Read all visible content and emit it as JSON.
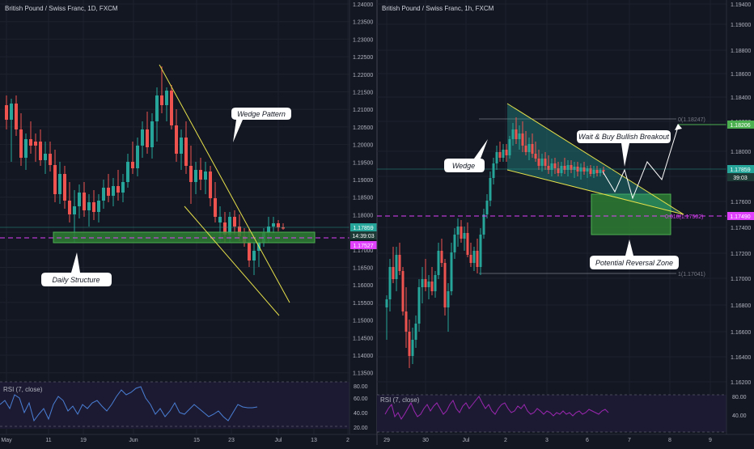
{
  "charts": [
    {
      "id": "left",
      "title": "British Pound / Swiss Franc, 1D, FXCM",
      "price_ticks": [
        "1.24000",
        "1.23500",
        "1.23000",
        "1.22500",
        "1.22000",
        "1.21500",
        "1.21000",
        "1.20500",
        "1.20000",
        "1.19500",
        "1.19000",
        "1.18500",
        "1.18000",
        "1.17500",
        "1.17000",
        "1.16500",
        "1.16000",
        "1.15500",
        "1.15000",
        "1.14500",
        "1.14000",
        "1.13500"
      ],
      "time_ticks": [
        "May",
        "11",
        "19",
        "Jun",
        "15",
        "23",
        "Jul",
        "13",
        "2"
      ],
      "last_price": "1.17859",
      "countdown": "14:39:03",
      "level_label": "1.17527",
      "annotations": {
        "wedge": "Wedge Pattern",
        "structure": "Daily Structure"
      },
      "rsi": {
        "label": "RSI (7, close)",
        "ticks": [
          "80.00",
          "60.00",
          "40.00",
          "20.00"
        ]
      }
    },
    {
      "id": "right",
      "title": "British Pound / Swiss Franc, 1h, FXCM",
      "price_ticks": [
        "1.19400",
        "1.19000",
        "1.18800",
        "1.18600",
        "1.18400",
        "1.18200",
        "1.18000",
        "1.17800",
        "1.17600",
        "1.17400",
        "1.17200",
        "1.17000",
        "1.16800",
        "1.16600",
        "1.16400",
        "1.16200"
      ],
      "time_ticks": [
        "29",
        "30",
        "Jul",
        "2",
        "3",
        "6",
        "7",
        "8",
        "9"
      ],
      "last_price": "1.17859",
      "countdown": "39:03",
      "top_label": "1.18206",
      "level_label": "1.17490",
      "fib_top": "0(1.18247)",
      "fib_bottom": "1(1.17041)",
      "fib_mid": "0.618(1.17502)",
      "annotations": {
        "wedge": "Wedge",
        "breakout": "Wait & Buy Bullish Breakout",
        "reversal": "Potential Reversal Zone"
      },
      "rsi": {
        "label": "RSI (7, close)",
        "ticks": [
          "80.00",
          "40.00"
        ]
      }
    }
  ],
  "colors": {
    "up": "#26a69a",
    "down": "#ef5350",
    "wedge": "#e6e04a",
    "zone": "#4caf50",
    "level": "#e040fb",
    "rsi_line": "#4a7fd4",
    "rsi_line_right": "#9c27b0"
  }
}
